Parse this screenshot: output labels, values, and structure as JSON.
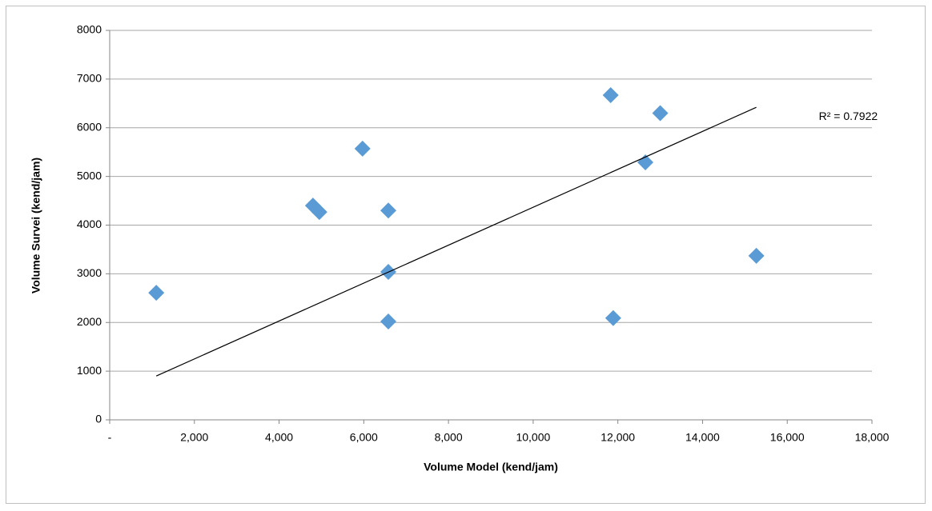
{
  "chart_data": {
    "type": "scatter",
    "x_label": "Volume Model (kend/jam)",
    "y_label": "Volume Survei (kend/jam)",
    "x": [
      1100,
      4800,
      4950,
      5970,
      6580,
      6580,
      6580,
      11830,
      11890,
      12650,
      13000,
      15270
    ],
    "values": [
      2610,
      4400,
      4270,
      5570,
      4300,
      3040,
      2020,
      6670,
      2090,
      5290,
      6300,
      3370
    ],
    "color": "#5b9bd5",
    "trendline": {
      "x": [
        1100,
        15270
      ],
      "y": [
        900,
        6420
      ],
      "label": "R² = 0.7922",
      "color": "#000000"
    },
    "xlim": [
      0,
      18000
    ],
    "xticks": [
      {
        "value": 0,
        "label": "-"
      },
      {
        "value": 2000,
        "label": "2,000"
      },
      {
        "value": 4000,
        "label": "4,000"
      },
      {
        "value": 6000,
        "label": "6,000"
      },
      {
        "value": 8000,
        "label": "8,000"
      },
      {
        "value": 10000,
        "label": "10,000"
      },
      {
        "value": 12000,
        "label": "12,000"
      },
      {
        "value": 14000,
        "label": "14,000"
      },
      {
        "value": 16000,
        "label": "16,000"
      },
      {
        "value": 18000,
        "label": "18,000"
      }
    ],
    "ylim": [
      0,
      8000
    ],
    "yticks": [
      0,
      1000,
      2000,
      3000,
      4000,
      5000,
      6000,
      7000,
      8000
    ],
    "grid": true
  }
}
